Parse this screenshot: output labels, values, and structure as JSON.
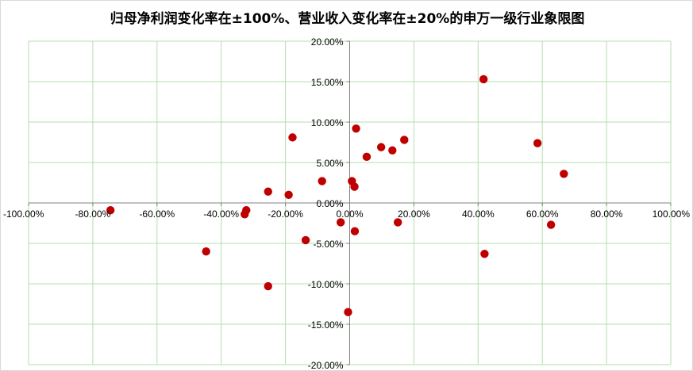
{
  "chart_data": {
    "type": "scatter",
    "title": "归母净利润变化率在±100%、营业收入变化率在±20%的申万一级行业象限图",
    "xlabel": "",
    "ylabel": "",
    "xlim": [
      -1.0,
      1.0
    ],
    "ylim": [
      -0.2,
      0.2
    ],
    "x_ticks": [
      -1.0,
      -0.8,
      -0.6,
      -0.4,
      -0.2,
      0.0,
      0.2,
      0.4,
      0.6,
      0.8,
      1.0
    ],
    "y_ticks": [
      -0.2,
      -0.15,
      -0.1,
      -0.05,
      0.0,
      0.05,
      0.1,
      0.15,
      0.2
    ],
    "x_tick_labels": [
      "-100.00%",
      "-80.00%",
      "-60.00%",
      "-40.00%",
      "-20.00%",
      "0.00%",
      "20.00%",
      "40.00%",
      "60.00%",
      "80.00%",
      "100.00%"
    ],
    "y_tick_labels": [
      "-20.00%",
      "-15.00%",
      "-10.00%",
      "-5.00%",
      "0.00%",
      "5.00%",
      "10.00%",
      "15.00%",
      "20.00%"
    ],
    "grid": true,
    "marker_color": "#c00000",
    "series": [
      {
        "points": [
          {
            "x": -0.745,
            "y": -0.009
          },
          {
            "x": -0.447,
            "y": -0.06
          },
          {
            "x": -0.322,
            "y": -0.009
          },
          {
            "x": -0.327,
            "y": -0.014
          },
          {
            "x": -0.254,
            "y": 0.014
          },
          {
            "x": -0.254,
            "y": -0.103
          },
          {
            "x": -0.19,
            "y": 0.01
          },
          {
            "x": -0.178,
            "y": 0.081
          },
          {
            "x": -0.137,
            "y": -0.046
          },
          {
            "x": -0.086,
            "y": 0.027
          },
          {
            "x": -0.028,
            "y": -0.024
          },
          {
            "x": -0.005,
            "y": -0.135
          },
          {
            "x": 0.007,
            "y": 0.027
          },
          {
            "x": 0.015,
            "y": 0.02
          },
          {
            "x": 0.016,
            "y": -0.035
          },
          {
            "x": 0.02,
            "y": 0.092
          },
          {
            "x": 0.053,
            "y": 0.057
          },
          {
            "x": 0.098,
            "y": 0.069
          },
          {
            "x": 0.133,
            "y": 0.065
          },
          {
            "x": 0.15,
            "y": -0.024
          },
          {
            "x": 0.17,
            "y": 0.078
          },
          {
            "x": 0.417,
            "y": 0.153
          },
          {
            "x": 0.42,
            "y": -0.063
          },
          {
            "x": 0.585,
            "y": 0.074
          },
          {
            "x": 0.627,
            "y": -0.027
          },
          {
            "x": 0.667,
            "y": 0.036
          }
        ]
      }
    ]
  }
}
